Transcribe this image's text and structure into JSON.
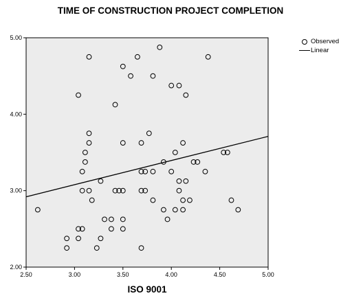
{
  "chart_data": {
    "type": "scatter",
    "title": "TIME OF CONSTRUCTION PROJECT COMPLETION",
    "xlabel": "ISO 9001",
    "ylabel": "",
    "xlim": [
      2.5,
      5.0
    ],
    "ylim": [
      2.0,
      5.0
    ],
    "xticks": [
      "2.50",
      "3.00",
      "3.50",
      "4.00",
      "4.50",
      "5.00"
    ],
    "yticks": [
      "2.00",
      "3.00",
      "4.00",
      "5.00"
    ],
    "grid": false,
    "legend_position": "top-right",
    "series": [
      {
        "name": "Observed",
        "marker": "open-circle",
        "points": [
          [
            2.62,
            2.75
          ],
          [
            2.92,
            2.25
          ],
          [
            2.92,
            2.375
          ],
          [
            3.04,
            2.375
          ],
          [
            3.04,
            2.5
          ],
          [
            3.08,
            2.5
          ],
          [
            3.04,
            4.25
          ],
          [
            3.08,
            3.0
          ],
          [
            3.08,
            3.25
          ],
          [
            3.11,
            3.375
          ],
          [
            3.11,
            3.5
          ],
          [
            3.15,
            4.75
          ],
          [
            3.15,
            3.75
          ],
          [
            3.15,
            3.625
          ],
          [
            3.15,
            3.0
          ],
          [
            3.18,
            2.875
          ],
          [
            3.23,
            2.25
          ],
          [
            3.27,
            2.375
          ],
          [
            3.27,
            3.125
          ],
          [
            3.31,
            2.625
          ],
          [
            3.38,
            2.5
          ],
          [
            3.38,
            2.625
          ],
          [
            3.42,
            4.125
          ],
          [
            3.42,
            3.0
          ],
          [
            3.46,
            3.0
          ],
          [
            3.5,
            4.625
          ],
          [
            3.5,
            3.625
          ],
          [
            3.5,
            3.0
          ],
          [
            3.5,
            2.625
          ],
          [
            3.5,
            2.5
          ],
          [
            3.58,
            4.5
          ],
          [
            3.65,
            4.75
          ],
          [
            3.69,
            3.625
          ],
          [
            3.69,
            3.25
          ],
          [
            3.69,
            3.0
          ],
          [
            3.69,
            2.25
          ],
          [
            3.73,
            3.25
          ],
          [
            3.73,
            3.0
          ],
          [
            3.77,
            3.75
          ],
          [
            3.81,
            4.5
          ],
          [
            3.81,
            3.25
          ],
          [
            3.81,
            2.875
          ],
          [
            3.88,
            4.875
          ],
          [
            3.92,
            3.375
          ],
          [
            3.92,
            2.75
          ],
          [
            3.96,
            2.625
          ],
          [
            4.0,
            4.375
          ],
          [
            4.0,
            3.25
          ],
          [
            4.04,
            3.5
          ],
          [
            4.04,
            2.75
          ],
          [
            4.08,
            4.375
          ],
          [
            4.08,
            3.125
          ],
          [
            4.08,
            3.0
          ],
          [
            4.12,
            3.625
          ],
          [
            4.12,
            2.875
          ],
          [
            4.12,
            2.75
          ],
          [
            4.15,
            4.25
          ],
          [
            4.15,
            3.125
          ],
          [
            4.19,
            2.875
          ],
          [
            4.23,
            3.375
          ],
          [
            4.27,
            3.375
          ],
          [
            4.35,
            3.25
          ],
          [
            4.38,
            4.75
          ],
          [
            4.54,
            3.5
          ],
          [
            4.58,
            3.5
          ],
          [
            4.62,
            2.875
          ],
          [
            4.69,
            2.75
          ]
        ]
      },
      {
        "name": "Linear",
        "type": "line",
        "points": [
          [
            2.5,
            2.92
          ],
          [
            5.0,
            3.71
          ]
        ]
      }
    ]
  }
}
